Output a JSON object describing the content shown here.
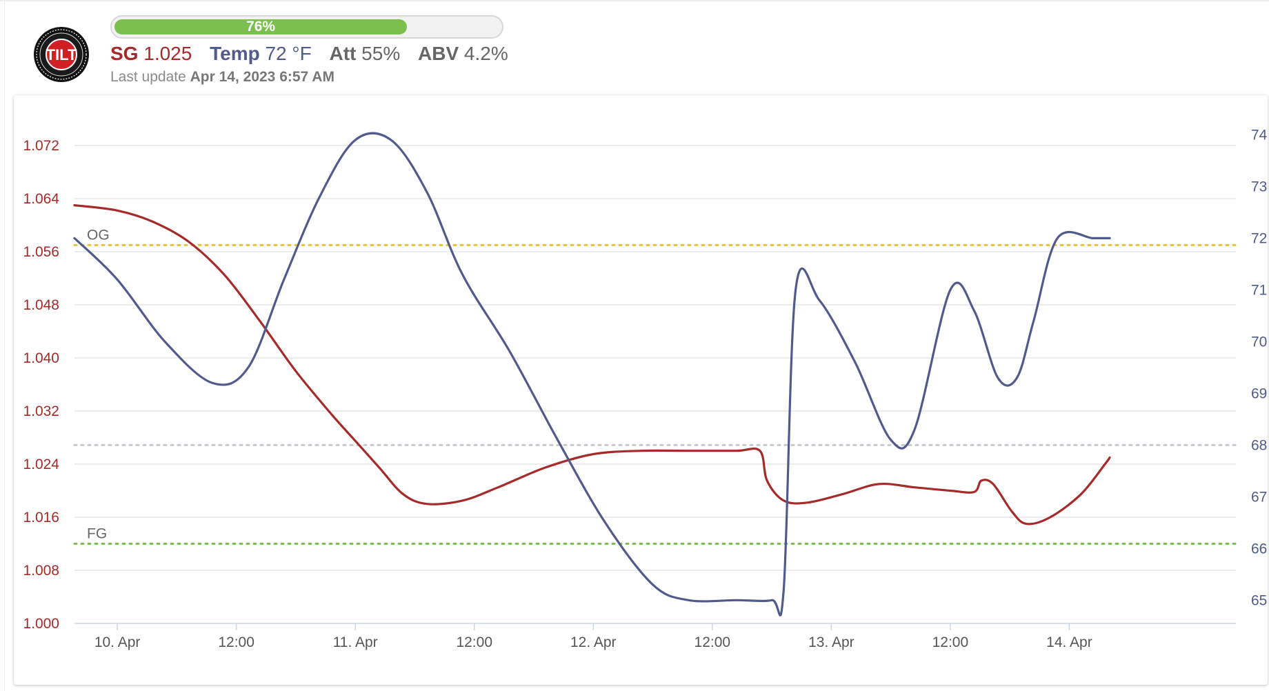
{
  "header": {
    "logo_text": "TILT",
    "progress": {
      "value": 76,
      "label": "76%"
    },
    "readings": {
      "sg": {
        "label": "SG",
        "value": "1.025"
      },
      "temp": {
        "label": "Temp",
        "value": "72 °F"
      },
      "att": {
        "label": "Att",
        "value": "55%"
      },
      "abv": {
        "label": "ABV",
        "value": "4.2%"
      }
    },
    "last_update": {
      "label": "Last update",
      "value": "Apr 14, 2023 6:57 AM"
    }
  },
  "colors": {
    "sg": "#a52a2a",
    "temp": "#515a8c",
    "og": "#e7c231",
    "fg": "#7bbf4f",
    "current": "#c7c7cf",
    "progress": "#7bbf4f"
  },
  "chart_data": {
    "type": "line",
    "x_ticks": [
      "10. Apr",
      "12:00",
      "11. Apr",
      "12:00",
      "12. Apr",
      "12:00",
      "13. Apr",
      "12:00",
      "14. Apr"
    ],
    "x_range": [
      -0.18,
      4.7
    ],
    "y_left": {
      "ticks": [
        "1.000",
        "1.008",
        "1.016",
        "1.024",
        "1.032",
        "1.040",
        "1.048",
        "1.056",
        "1.064",
        "1.072"
      ],
      "range": [
        1.0,
        1.0775
      ]
    },
    "y_right": {
      "ticks": [
        "65",
        "66",
        "67",
        "68",
        "69",
        "70",
        "71",
        "72",
        "73",
        "74"
      ],
      "range": [
        64.55,
        74.5
      ]
    },
    "grid": true,
    "legend": "none",
    "plot_lines": [
      {
        "label": "OG",
        "value": 1.057,
        "axis": "left",
        "color": "#e7c231"
      },
      {
        "label": "FG",
        "value": 1.012,
        "axis": "left",
        "color": "#7bbf4f"
      },
      {
        "label": "",
        "value": 68,
        "axis": "right",
        "color": "#c7c7cf"
      }
    ],
    "series": [
      {
        "axis": "left",
        "color": "#a52a2a",
        "points": [
          [
            -0.18,
            1.063
          ],
          [
            0.0,
            1.0622
          ],
          [
            0.15,
            1.0605
          ],
          [
            0.3,
            1.0575
          ],
          [
            0.45,
            1.0525
          ],
          [
            0.6,
            1.0455
          ],
          [
            0.75,
            1.038
          ],
          [
            0.9,
            1.0315
          ],
          [
            1.0,
            1.0275
          ],
          [
            1.1,
            1.0235
          ],
          [
            1.2,
            1.0195
          ],
          [
            1.3,
            1.018
          ],
          [
            1.45,
            1.0185
          ],
          [
            1.6,
            1.0205
          ],
          [
            1.8,
            1.0235
          ],
          [
            2.0,
            1.0255
          ],
          [
            2.2,
            1.026
          ],
          [
            2.4,
            1.026
          ],
          [
            2.6,
            1.026
          ],
          [
            2.7,
            1.026
          ],
          [
            2.73,
            1.0215
          ],
          [
            2.8,
            1.0185
          ],
          [
            2.9,
            1.0182
          ],
          [
            3.05,
            1.0195
          ],
          [
            3.2,
            1.021
          ],
          [
            3.35,
            1.0205
          ],
          [
            3.5,
            1.02
          ],
          [
            3.6,
            1.0198
          ],
          [
            3.63,
            1.0215
          ],
          [
            3.68,
            1.021
          ],
          [
            3.76,
            1.0168
          ],
          [
            3.82,
            1.015
          ],
          [
            3.92,
            1.016
          ],
          [
            4.05,
            1.0195
          ],
          [
            4.15,
            1.024
          ],
          [
            4.17,
            1.025
          ]
        ]
      },
      {
        "axis": "right",
        "color": "#515a8c",
        "points": [
          [
            -0.18,
            72
          ],
          [
            0.0,
            71.2
          ],
          [
            0.2,
            70
          ],
          [
            0.4,
            69.2
          ],
          [
            0.55,
            69.5
          ],
          [
            0.7,
            71.2
          ],
          [
            0.85,
            72.8
          ],
          [
            1.0,
            73.9
          ],
          [
            1.15,
            73.9
          ],
          [
            1.3,
            72.9
          ],
          [
            1.45,
            71.3
          ],
          [
            1.65,
            69.8
          ],
          [
            1.85,
            68.1
          ],
          [
            2.05,
            66.5
          ],
          [
            2.25,
            65.3
          ],
          [
            2.4,
            65
          ],
          [
            2.6,
            65
          ],
          [
            2.75,
            65
          ],
          [
            2.8,
            65.2
          ],
          [
            2.85,
            71
          ],
          [
            2.95,
            70.8
          ],
          [
            3.1,
            69.6
          ],
          [
            3.25,
            68.1
          ],
          [
            3.35,
            68.3
          ],
          [
            3.5,
            71
          ],
          [
            3.6,
            70.6
          ],
          [
            3.7,
            69.3
          ],
          [
            3.78,
            69.3
          ],
          [
            3.85,
            70.4
          ],
          [
            3.95,
            72
          ],
          [
            4.1,
            72
          ],
          [
            4.17,
            72
          ]
        ]
      }
    ]
  }
}
